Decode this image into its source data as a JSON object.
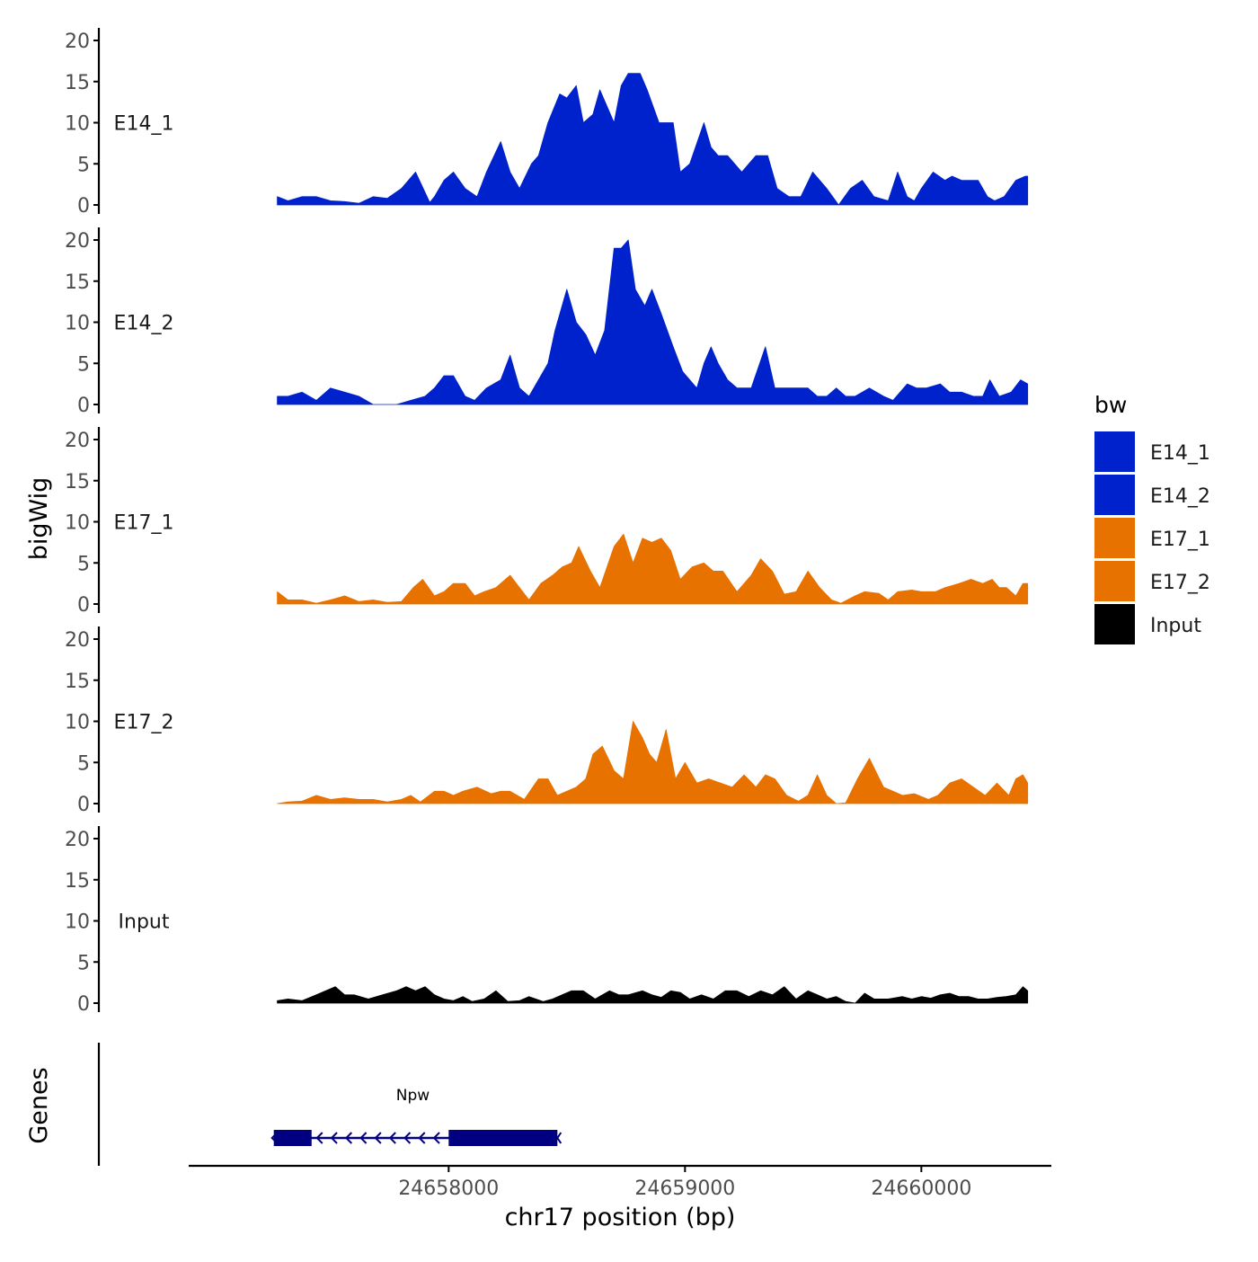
{
  "chart_data": {
    "type": "area",
    "ylabel": "bigWig",
    "xlabel": "chr17 position (bp)",
    "x_ticks": [
      24658000,
      24659000,
      24660000
    ],
    "x_tick_labels": [
      "24658000",
      "24659000",
      "24660000"
    ],
    "xlim": [
      24656900,
      24660550
    ],
    "ylim": [
      0,
      20
    ],
    "y_ticks": [
      0,
      5,
      10,
      15,
      20
    ],
    "y_tick_labels": [
      "0",
      "5",
      "10",
      "15",
      "20"
    ],
    "legend": {
      "title": "bw",
      "position": "right",
      "entries": [
        {
          "label": "E14_1",
          "color": "#0022CC"
        },
        {
          "label": "E14_2",
          "color": "#0022CC"
        },
        {
          "label": "E17_1",
          "color": "#E87200"
        },
        {
          "label": "E17_2",
          "color": "#E87200"
        },
        {
          "label": "Input",
          "color": "#000000"
        }
      ]
    },
    "series": [
      {
        "name": "E14_1",
        "color": "#0022CC",
        "x": [
          24657275,
          24657320,
          24657380,
          24657440,
          24657500,
          24657560,
          24657620,
          24657680,
          24657740,
          24657800,
          24657860,
          24657920,
          24657940,
          24657980,
          24658020,
          24658070,
          24658120,
          24658160,
          24658220,
          24658260,
          24658300,
          24658350,
          24658380,
          24658420,
          24658470,
          24658500,
          24658540,
          24658570,
          24658610,
          24658640,
          24658700,
          24658730,
          24658760,
          24658810,
          24658840,
          24658890,
          24658950,
          24658980,
          24659020,
          24659080,
          24659110,
          24659140,
          24659180,
          24659240,
          24659300,
          24659350,
          24659390,
          24659440,
          24659490,
          24659540,
          24659600,
          24659650,
          24659700,
          24659750,
          24659800,
          24659860,
          24659900,
          24659940,
          24659970,
          24660000,
          24660050,
          24660100,
          24660130,
          24660170,
          24660240,
          24660280,
          24660310,
          24660350,
          24660400,
          24660440,
          24660450
        ],
        "values": [
          1,
          0.5,
          1,
          1,
          0.5,
          0.4,
          0.2,
          1,
          0.8,
          2,
          4,
          0.3,
          1,
          3,
          4,
          2,
          1,
          4,
          7.7,
          4,
          2,
          5,
          6,
          10,
          13.5,
          13,
          14.5,
          10,
          11,
          14,
          10,
          14.5,
          16,
          16,
          14,
          10,
          10,
          4,
          5,
          10,
          7,
          6,
          6,
          4,
          6,
          6,
          2,
          1,
          1,
          4,
          2,
          0,
          2,
          3,
          1,
          0.5,
          4,
          1,
          0.5,
          2,
          4,
          3,
          3.5,
          3,
          3,
          1,
          0.5,
          1,
          3,
          3.5,
          3.5
        ]
      },
      {
        "name": "E14_2",
        "color": "#0022CC",
        "x": [
          24657275,
          24657320,
          24657380,
          24657440,
          24657500,
          24657560,
          24657620,
          24657680,
          24657740,
          24657780,
          24657840,
          24657900,
          24657940,
          24657980,
          24658020,
          24658070,
          24658110,
          24658160,
          24658220,
          24658260,
          24658300,
          24658340,
          24658380,
          24658420,
          24658450,
          24658500,
          24658540,
          24658580,
          24658620,
          24658660,
          24658700,
          24658730,
          24658760,
          24658790,
          24658830,
          24658860,
          24658900,
          24658950,
          24658990,
          24659050,
          24659080,
          24659110,
          24659140,
          24659180,
          24659220,
          24659280,
          24659340,
          24659380,
          24659420,
          24659460,
          24659520,
          24659560,
          24659600,
          24659640,
          24659680,
          24659720,
          24659780,
          24659840,
          24659880,
          24659940,
          24659980,
          24660020,
          24660080,
          24660120,
          24660170,
          24660220,
          24660260,
          24660290,
          24660330,
          24660380,
          24660420,
          24660450
        ],
        "values": [
          1,
          1,
          1.5,
          0.5,
          2,
          1.5,
          1,
          0,
          0,
          0,
          0.5,
          1,
          2,
          3.5,
          3.5,
          1,
          0.5,
          2,
          3,
          6,
          2,
          1,
          3,
          5,
          9,
          14,
          10,
          8.5,
          6,
          9,
          19,
          19,
          20,
          14,
          12,
          14,
          11,
          7,
          4,
          2,
          5,
          7,
          5,
          3,
          2,
          2,
          7,
          2,
          2,
          2,
          2,
          1,
          1,
          2,
          1,
          1,
          2,
          1,
          0.5,
          2.5,
          2,
          2,
          2.5,
          1.5,
          1.5,
          1,
          1,
          3,
          1,
          1.5,
          3,
          2.5
        ]
      },
      {
        "name": "E17_1",
        "color": "#E87200",
        "x": [
          24657275,
          24657320,
          24657380,
          24657440,
          24657500,
          24657560,
          24657620,
          24657680,
          24657740,
          24657800,
          24657850,
          24657890,
          24657940,
          24657980,
          24658020,
          24658070,
          24658110,
          24658150,
          24658200,
          24658260,
          24658300,
          24658340,
          24658390,
          24658440,
          24658480,
          24658520,
          24658550,
          24658600,
          24658640,
          24658700,
          24658740,
          24658780,
          24658820,
          24658860,
          24658900,
          24658940,
          24658980,
          24659030,
          24659080,
          24659120,
          24659160,
          24659220,
          24659280,
          24659320,
          24659370,
          24659420,
          24659470,
          24659520,
          24659570,
          24659620,
          24659660,
          24659720,
          24659760,
          24659820,
          24659860,
          24659900,
          24659960,
          24660000,
          24660060,
          24660100,
          24660160,
          24660210,
          24660260,
          24660300,
          24660330,
          24660360,
          24660400,
          24660430,
          24660450
        ],
        "values": [
          1.5,
          0.5,
          0.5,
          0.1,
          0.5,
          1,
          0.3,
          0.5,
          0.2,
          0.3,
          2,
          3,
          1,
          1.5,
          2.5,
          2.5,
          1,
          1.5,
          2,
          3.5,
          2,
          0.5,
          2.5,
          3.5,
          4.5,
          5,
          7,
          4,
          2,
          7,
          8.5,
          5,
          8,
          7.5,
          8,
          6.5,
          3,
          4.5,
          5,
          4,
          4,
          1.5,
          3.5,
          5.5,
          4,
          1.2,
          1.5,
          4,
          2,
          0.5,
          0.1,
          1,
          1.5,
          1.3,
          0.5,
          1.5,
          1.7,
          1.5,
          1.5,
          2,
          2.5,
          3,
          2.5,
          3,
          2,
          2,
          1,
          2.5,
          2.5
        ]
      },
      {
        "name": "E17_2",
        "color": "#E87200",
        "x": [
          24657275,
          24657320,
          24657380,
          24657440,
          24657500,
          24657560,
          24657620,
          24657680,
          24657740,
          24657800,
          24657840,
          24657880,
          24657940,
          24657980,
          24658020,
          24658060,
          24658120,
          24658180,
          24658220,
          24658260,
          24658320,
          24658380,
          24658420,
          24658460,
          24658500,
          24658540,
          24658580,
          24658610,
          24658650,
          24658700,
          24658740,
          24658780,
          24658820,
          24658850,
          24658880,
          24658920,
          24658960,
          24659000,
          24659050,
          24659100,
          24659150,
          24659200,
          24659250,
          24659300,
          24659340,
          24659380,
          24659430,
          24659480,
          24659520,
          24659560,
          24659600,
          24659640,
          24659680,
          24659730,
          24659780,
          24659840,
          24659880,
          24659920,
          24659970,
          24660030,
          24660070,
          24660120,
          24660170,
          24660220,
          24660270,
          24660320,
          24660370,
          24660400,
          24660430,
          24660450
        ],
        "values": [
          0,
          0.2,
          0.3,
          1,
          0.5,
          0.7,
          0.5,
          0.5,
          0.2,
          0.5,
          1,
          0.2,
          1.5,
          1.5,
          1,
          1.5,
          2,
          1.2,
          1.5,
          1.5,
          0.5,
          3,
          3,
          1,
          1.5,
          2,
          3,
          6,
          7,
          4,
          3,
          10,
          8,
          6,
          5,
          9,
          3,
          5,
          2.5,
          3,
          2.5,
          2,
          3.5,
          2,
          3.5,
          3,
          1,
          0.3,
          1,
          3.5,
          1,
          0,
          0.1,
          3,
          5.5,
          2,
          1.5,
          1,
          1.2,
          0.5,
          1,
          2.5,
          3,
          2,
          1,
          2.5,
          1,
          3,
          3.5,
          2.5
        ]
      },
      {
        "name": "Input",
        "color": "#000000",
        "x": [
          24657275,
          24657320,
          24657380,
          24657440,
          24657480,
          24657520,
          24657560,
          24657600,
          24657660,
          24657720,
          24657780,
          24657820,
          24657860,
          24657900,
          24657940,
          24657980,
          24658020,
          24658060,
          24658100,
          24658150,
          24658200,
          24658250,
          24658300,
          24658340,
          24658400,
          24658440,
          24658480,
          24658520,
          24658570,
          24658620,
          24658680,
          24658720,
          24658760,
          24658820,
          24658860,
          24658900,
          24658940,
          24658980,
          24659020,
          24659070,
          24659120,
          24659170,
          24659220,
          24659270,
          24659320,
          24659370,
          24659420,
          24659470,
          24659520,
          24659560,
          24659600,
          24659640,
          24659680,
          24659720,
          24659760,
          24659800,
          24659860,
          24659920,
          24659960,
          24660000,
          24660040,
          24660080,
          24660120,
          24660160,
          24660200,
          24660240,
          24660280,
          24660320,
          24660360,
          24660400,
          24660430,
          24660450
        ],
        "values": [
          0.3,
          0.5,
          0.3,
          1,
          1.5,
          2,
          1,
          1,
          0.5,
          1,
          1.5,
          2,
          1.5,
          2,
          1,
          0.5,
          0.3,
          0.8,
          0.2,
          0.5,
          1.5,
          0.2,
          0.3,
          0.8,
          0.2,
          0.5,
          1,
          1.5,
          1.5,
          0.5,
          1.5,
          1,
          1,
          1.5,
          1,
          0.7,
          1.5,
          1.3,
          0.5,
          1,
          0.5,
          1.5,
          1.5,
          0.8,
          1.5,
          1,
          2,
          0.5,
          1.5,
          1,
          0.5,
          0.8,
          0.2,
          0,
          1.2,
          0.5,
          0.5,
          0.8,
          0.5,
          0.8,
          0.6,
          1,
          1.2,
          0.8,
          0.8,
          0.5,
          0.5,
          0.7,
          0.8,
          1,
          2,
          1.5
        ]
      }
    ],
    "genes_panel": {
      "ylabel": "Genes",
      "genes": [
        {
          "name": "Npw",
          "start": 24657260,
          "end": 24658460,
          "strand": "-",
          "exons": [
            [
              24657260,
              24657420
            ],
            [
              24658000,
              24658460
            ]
          ]
        }
      ]
    }
  },
  "colors": {
    "gene": "#000080",
    "axis": "#000000",
    "tick_text": "#4D4D4D"
  }
}
